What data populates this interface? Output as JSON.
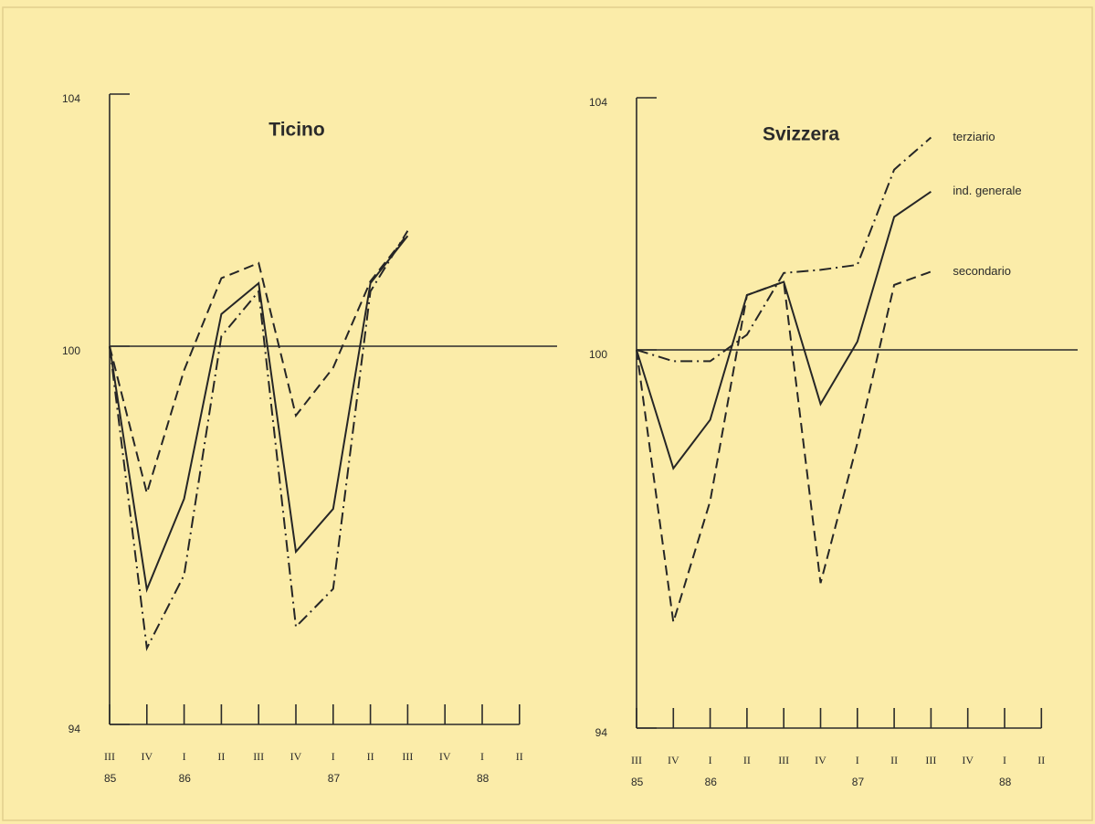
{
  "chart_data": [
    {
      "type": "line",
      "title": "Ticino",
      "categories": [
        "III",
        "IV",
        "I",
        "II",
        "III",
        "IV",
        "I",
        "II",
        "III",
        "IV",
        "I",
        "II"
      ],
      "year_labels": [
        "85",
        null,
        "86",
        null,
        null,
        null,
        "87",
        null,
        null,
        null,
        "88",
        null
      ],
      "ylim": [
        94,
        104
      ],
      "yticks": [
        94,
        100,
        104
      ],
      "reference_line": 100,
      "series": [
        {
          "style": "solid",
          "color": "#262626",
          "values": [
            100,
            96.14,
            97.58,
            100.51,
            101.0,
            96.74,
            97.42,
            101.0,
            101.75,
            null,
            null,
            null
          ]
        },
        {
          "style": "dashed",
          "color": "#262626",
          "values": [
            100,
            97.67,
            99.62,
            101.08,
            101.32,
            98.9,
            99.66,
            101.03,
            101.78,
            null,
            null,
            null
          ]
        },
        {
          "style": "dashdot",
          "color": "#262626",
          "values": [
            100,
            95.21,
            96.37,
            100.16,
            100.87,
            95.55,
            96.15,
            100.87,
            101.83,
            null,
            null,
            null
          ]
        }
      ]
    },
    {
      "type": "line",
      "title": "Svizzera",
      "categories": [
        "III",
        "IV",
        "I",
        "II",
        "III",
        "IV",
        "I",
        "II",
        "III",
        "IV",
        "I",
        "II"
      ],
      "year_labels": [
        "85",
        null,
        "86",
        null,
        null,
        null,
        "87",
        null,
        null,
        null,
        "88",
        null
      ],
      "ylim": [
        94,
        104
      ],
      "yticks": [
        94,
        100,
        104
      ],
      "reference_line": 100,
      "series": [
        {
          "name": "terziario",
          "style": "dashdot",
          "color": "#262626",
          "values": [
            100,
            99.82,
            99.82,
            100.24,
            101.22,
            101.27,
            101.35,
            102.86,
            103.37,
            null,
            null,
            null
          ]
        },
        {
          "name": "ind. generale",
          "style": "solid",
          "color": "#262626",
          "values": [
            100,
            98.12,
            98.89,
            100.87,
            101.08,
            99.14,
            100.13,
            102.11,
            102.51,
            null,
            null,
            null
          ]
        },
        {
          "name": "secondario",
          "style": "dashed",
          "color": "#262626",
          "values": [
            100,
            95.68,
            97.6,
            100.87,
            101.08,
            96.3,
            98.52,
            101.03,
            101.24,
            null,
            null,
            null
          ]
        }
      ]
    }
  ]
}
